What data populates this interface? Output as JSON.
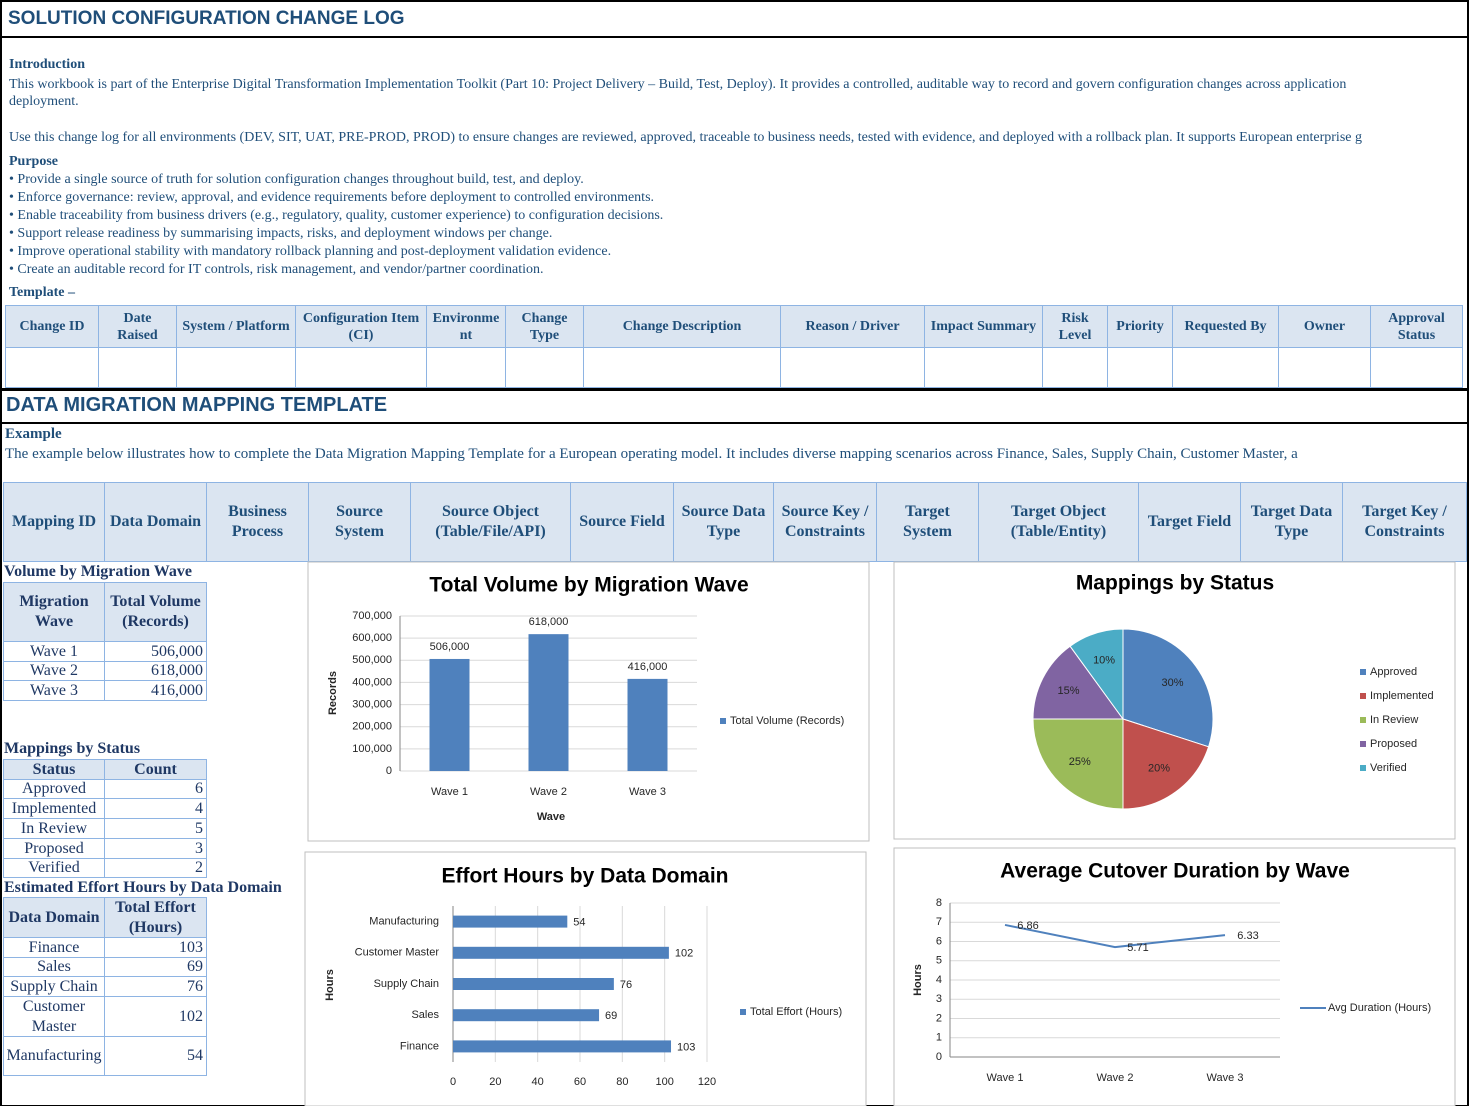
{
  "section1": {
    "title": "SOLUTION CONFIGURATION CHANGE LOG",
    "intro_heading": "Introduction",
    "intro_lines": [
      "This workbook is part of the Enterprise Digital Transformation Implementation Toolkit (Part 10: Project Delivery – Build, Test, Deploy). It provides a controlled, auditable way to record and govern configuration changes across application",
      "deployment.",
      "Use this change log for all environments (DEV, SIT, UAT, PRE-PROD, PROD) to ensure changes are reviewed, approved, traceable to business needs, tested with evidence, and deployed with a rollback plan. It supports European enterprise g"
    ],
    "purpose_heading": "Purpose",
    "purpose_items": [
      "• Provide a single source of truth for solution configuration changes throughout build, test, and deploy.",
      "• Enforce governance: review, approval, and evidence requirements before deployment to controlled environments.",
      "• Enable traceability from business drivers (e.g., regulatory, quality, customer experience) to configuration decisions.",
      "• Support release readiness by summarising impacts, risks, and deployment windows per change.",
      "• Improve operational stability with mandatory rollback planning and post-deployment validation evidence.",
      "• Create an auditable record for IT controls, risk management, and vendor/partner coordination."
    ],
    "template_heading": "Template –",
    "template_headers": [
      "Change ID",
      "Date Raised",
      "System / Platform",
      "Configuration Item (CI)",
      "Environment",
      "Change Type",
      "Change Description",
      "Reason / Driver",
      "Impact Summary",
      "Risk Level",
      "Priority",
      "Requested By",
      "Owner",
      "Approval Status"
    ]
  },
  "section2": {
    "title": "DATA MIGRATION MAPPING TEMPLATE",
    "example_heading": "Example",
    "example_text": "The example below illustrates how to complete the Data Migration Mapping Template for a European operating model. It includes diverse mapping scenarios across Finance, Sales, Supply Chain, Customer Master, a",
    "headers": [
      "Mapping ID",
      "Data Domain",
      "Business Process",
      "Source System",
      "Source Object (Table/File/API)",
      "Source Field",
      "Source Data Type",
      "Source Key / Constraints",
      "Target System",
      "Target Object (Table/Entity)",
      "Target Field",
      "Target Data Type",
      "Target Key / Constraints"
    ]
  },
  "tables": [
    {
      "title": "Volume by Migration Wave",
      "headers": [
        "Migration Wave",
        "Total Volume (Records)"
      ],
      "rows": [
        [
          "Wave 1",
          "506,000"
        ],
        [
          "Wave 2",
          "618,000"
        ],
        [
          "Wave 3",
          "416,000"
        ]
      ]
    },
    {
      "title": "Mappings by Status",
      "headers": [
        "Status",
        "Count"
      ],
      "rows": [
        [
          "Approved",
          6
        ],
        [
          "Implemented",
          4
        ],
        [
          "In Review",
          5
        ],
        [
          "Proposed",
          3
        ],
        [
          "Verified",
          2
        ]
      ]
    },
    {
      "title": "Estimated Effort Hours by Data Domain",
      "headers": [
        "Data Domain",
        "Total Effort (Hours)"
      ],
      "rows": [
        [
          "Finance",
          103
        ],
        [
          "Sales",
          69
        ],
        [
          "Supply Chain",
          76
        ],
        [
          "Customer Master",
          102
        ],
        [
          "Manufacturing",
          54
        ]
      ]
    }
  ],
  "chart_data": [
    {
      "type": "bar",
      "title": "Total Volume by Migration Wave",
      "x_label": "Wave",
      "y_label": "Records",
      "categories": [
        "Wave 1",
        "Wave 2",
        "Wave 3"
      ],
      "series": [
        {
          "name": "Total Volume (Records)",
          "color": "#4f81bd",
          "values": [
            506000,
            618000,
            416000
          ],
          "value_labels": [
            "506,000",
            "618,000",
            "416,000"
          ]
        }
      ],
      "ylim": [
        0,
        700000
      ],
      "yticks": [
        0,
        {
          "value": 100000,
          "label": "100,000"
        },
        {
          "value": 200000,
          "label": "200,000"
        },
        {
          "value": 300000,
          "label": "300,000"
        },
        {
          "value": 400000,
          "label": "400,000"
        },
        {
          "value": 500000,
          "label": "500,000"
        },
        {
          "value": 600000,
          "label": "600,000"
        },
        {
          "value": 700000,
          "label": "700,000"
        }
      ],
      "grid": true,
      "legend": "right"
    },
    {
      "type": "pie",
      "title": "Mappings by Status",
      "categories": [
        "Approved",
        "Implemented",
        "In Review",
        "Proposed",
        "Verified"
      ],
      "values": [
        30,
        20,
        25,
        15,
        10
      ],
      "value_labels": [
        "30%",
        "20%",
        "25%",
        "15%",
        "10%"
      ],
      "colors": [
        "#4f81bd",
        "#c0504d",
        "#9bbb59",
        "#8064a2",
        "#4bacc6"
      ],
      "legend": "right"
    },
    {
      "type": "bar",
      "orientation": "horizontal",
      "title": "Effort Hours by Data Domain",
      "y_label": "Hours",
      "categories": [
        "Finance",
        "Sales",
        "Supply Chain",
        "Customer Master",
        "Manufacturing"
      ],
      "series": [
        {
          "name": "Total Effort (Hours)",
          "color": "#4f81bd",
          "values": [
            103,
            69,
            76,
            102,
            54
          ]
        }
      ],
      "xlim": [
        0,
        120
      ],
      "xticks": [
        0,
        20,
        40,
        60,
        80,
        100,
        120
      ],
      "grid": true,
      "legend": "right"
    },
    {
      "type": "line",
      "title": "Average Cutover Duration by Wave",
      "y_label": "Hours",
      "categories": [
        "Wave 1",
        "Wave 2",
        "Wave 3"
      ],
      "series": [
        {
          "name": "Avg Duration (Hours)",
          "color": "#4f81bd",
          "values": [
            6.86,
            5.71,
            6.33
          ]
        }
      ],
      "ylim": [
        0,
        8
      ],
      "yticks": [
        0,
        1,
        2,
        3,
        4,
        5,
        6,
        7,
        8
      ],
      "grid": true,
      "legend": "right"
    }
  ]
}
